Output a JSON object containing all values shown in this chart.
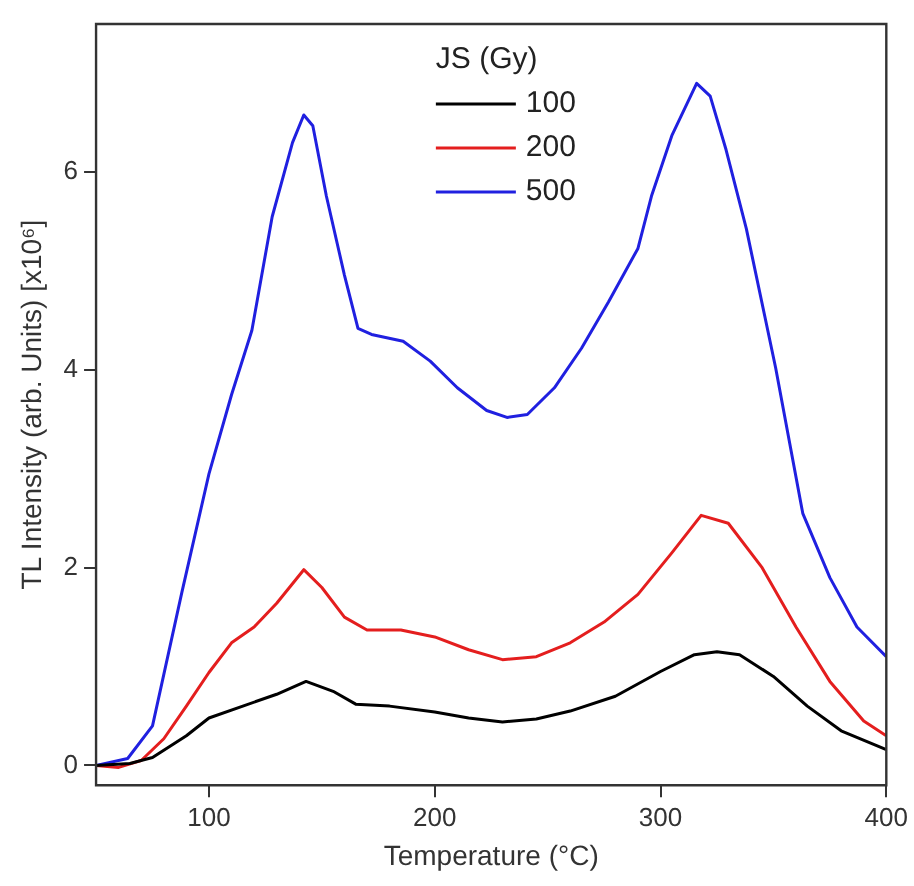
{
  "chart_data": {
    "type": "line",
    "xlabel": "Temperature (°C)",
    "ylabel": "TL Intensity (arb. Units) [x10⁶]",
    "legend_title": "JS (Gy)",
    "legend": "top",
    "grid": false,
    "marker": "none",
    "line_style": "solid",
    "xlim": [
      50,
      400
    ],
    "xticks": [
      100,
      200,
      300,
      400
    ],
    "ylim": [
      -0.2,
      7.5
    ],
    "yticks": [
      0,
      2,
      4,
      6
    ],
    "series": [
      {
        "name": "100",
        "color": "#000000",
        "x": [
          50,
          65,
          75,
          90,
          100,
          115,
          130,
          143,
          155,
          165,
          180,
          200,
          215,
          230,
          245,
          260,
          280,
          300,
          315,
          325,
          335,
          350,
          365,
          380,
          400
        ],
        "values": [
          0,
          0.02,
          0.08,
          0.3,
          0.48,
          0.6,
          0.72,
          0.85,
          0.75,
          0.62,
          0.6,
          0.54,
          0.48,
          0.44,
          0.47,
          0.55,
          0.7,
          0.95,
          1.12,
          1.15,
          1.12,
          0.9,
          0.6,
          0.35,
          0.16
        ]
      },
      {
        "name": "200",
        "color": "#e41e1e",
        "x": [
          50,
          60,
          70,
          80,
          90,
          100,
          110,
          120,
          130,
          142,
          150,
          160,
          170,
          185,
          200,
          215,
          230,
          245,
          260,
          275,
          290,
          305,
          318,
          330,
          345,
          360,
          375,
          390,
          400
        ],
        "values": [
          0,
          -0.02,
          0.05,
          0.27,
          0.6,
          0.94,
          1.24,
          1.4,
          1.64,
          1.98,
          1.8,
          1.5,
          1.37,
          1.37,
          1.3,
          1.17,
          1.07,
          1.1,
          1.24,
          1.45,
          1.73,
          2.15,
          2.53,
          2.45,
          2.0,
          1.4,
          0.85,
          0.45,
          0.3
        ]
      },
      {
        "name": "500",
        "color": "#2020e0",
        "x": [
          50,
          64,
          75,
          88,
          100,
          110,
          119,
          128,
          137,
          142,
          146,
          152,
          160,
          166,
          172,
          186,
          198,
          210,
          223,
          232,
          241,
          253,
          265,
          277,
          290,
          296,
          305,
          316,
          322,
          329,
          338,
          351,
          363,
          375,
          387,
          400
        ],
        "values": [
          0,
          0.07,
          0.4,
          1.75,
          2.95,
          3.75,
          4.4,
          5.55,
          6.3,
          6.58,
          6.47,
          5.76,
          4.96,
          4.42,
          4.36,
          4.29,
          4.09,
          3.82,
          3.59,
          3.52,
          3.55,
          3.82,
          4.22,
          4.69,
          5.23,
          5.76,
          6.37,
          6.9,
          6.77,
          6.23,
          5.43,
          4.02,
          2.55,
          1.9,
          1.4,
          1.1
        ]
      }
    ]
  }
}
